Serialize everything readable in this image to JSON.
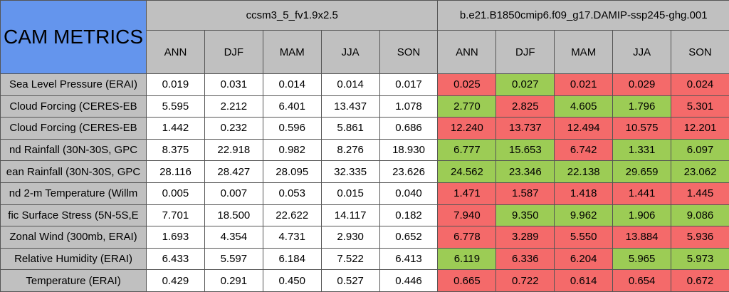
{
  "header": {
    "title": "CAM METRICS",
    "groups": [
      "ccsm3_5_fv1.9x2.5",
      "b.e21.B1850cmip6.f09_g17.DAMIP-ssp245-ghg.001"
    ],
    "seasons": [
      "ANN",
      "DJF",
      "MAM",
      "JJA",
      "SON"
    ]
  },
  "table": {
    "rows": [
      {
        "label": "Sea Level Pressure (ERAI)",
        "values": [
          [
            "0.019",
            "0.031",
            "0.014",
            "0.014",
            "0.017"
          ],
          [
            "0.025",
            "0.027",
            "0.021",
            "0.029",
            "0.024"
          ]
        ],
        "colors": [
          "#f46a6a",
          "#9ccc55",
          "#f46a6a",
          "#f46a6a",
          "#f46a6a"
        ]
      },
      {
        "label": "Cloud Forcing (CERES-EB",
        "values": [
          [
            "5.595",
            "2.212",
            "6.401",
            "13.437",
            "1.078"
          ],
          [
            "2.770",
            "2.825",
            "4.605",
            "1.796",
            "5.301"
          ]
        ],
        "colors": [
          "#9ccc55",
          "#f46a6a",
          "#9ccc55",
          "#9ccc55",
          "#f46a6a"
        ]
      },
      {
        "label": "Cloud Forcing (CERES-EB",
        "values": [
          [
            "1.442",
            "0.232",
            "0.596",
            "5.861",
            "0.686"
          ],
          [
            "12.240",
            "13.737",
            "12.494",
            "10.575",
            "12.201"
          ]
        ],
        "colors": [
          "#f46a6a",
          "#f46a6a",
          "#f46a6a",
          "#f46a6a",
          "#f46a6a"
        ]
      },
      {
        "label": "nd Rainfall (30N-30S, GPC",
        "values": [
          [
            "8.375",
            "22.918",
            "0.982",
            "8.276",
            "18.930"
          ],
          [
            "6.777",
            "15.653",
            "6.742",
            "1.331",
            "6.097"
          ]
        ],
        "colors": [
          "#9ccc55",
          "#9ccc55",
          "#f46a6a",
          "#9ccc55",
          "#9ccc55"
        ]
      },
      {
        "label": "ean Rainfall (30N-30S, GPC",
        "values": [
          [
            "28.116",
            "28.427",
            "28.095",
            "32.335",
            "23.626"
          ],
          [
            "24.562",
            "23.346",
            "22.138",
            "29.659",
            "23.062"
          ]
        ],
        "colors": [
          "#9ccc55",
          "#9ccc55",
          "#9ccc55",
          "#9ccc55",
          "#9ccc55"
        ]
      },
      {
        "label": "nd 2-m Temperature (Willm",
        "values": [
          [
            "0.005",
            "0.007",
            "0.053",
            "0.015",
            "0.040"
          ],
          [
            "1.471",
            "1.587",
            "1.418",
            "1.441",
            "1.445"
          ]
        ],
        "colors": [
          "#f46a6a",
          "#f46a6a",
          "#f46a6a",
          "#f46a6a",
          "#f46a6a"
        ]
      },
      {
        "label": "fic Surface Stress (5N-5S,E",
        "values": [
          [
            "7.701",
            "18.500",
            "22.622",
            "14.117",
            "0.182"
          ],
          [
            "7.940",
            "9.350",
            "9.962",
            "1.906",
            "9.086"
          ]
        ],
        "colors": [
          "#f46a6a",
          "#9ccc55",
          "#9ccc55",
          "#9ccc55",
          "#9ccc55"
        ]
      },
      {
        "label": "Zonal Wind (300mb, ERAI)",
        "values": [
          [
            "1.693",
            "4.354",
            "4.731",
            "2.930",
            "0.652"
          ],
          [
            "6.778",
            "3.289",
            "5.550",
            "13.884",
            "5.936"
          ]
        ],
        "colors": [
          "#f46a6a",
          "#f46a6a",
          "#f46a6a",
          "#f46a6a",
          "#f46a6a"
        ]
      },
      {
        "label": "Relative Humidity (ERAI)",
        "values": [
          [
            "6.433",
            "5.597",
            "6.184",
            "7.522",
            "6.413"
          ],
          [
            "6.119",
            "6.336",
            "6.204",
            "5.965",
            "5.973"
          ]
        ],
        "colors": [
          "#9ccc55",
          "#f46a6a",
          "#f46a6a",
          "#9ccc55",
          "#9ccc55"
        ]
      },
      {
        "label": "Temperature (ERAI)",
        "values": [
          [
            "0.429",
            "0.291",
            "0.450",
            "0.527",
            "0.446"
          ],
          [
            "0.665",
            "0.722",
            "0.614",
            "0.654",
            "0.672"
          ]
        ],
        "colors": [
          "#f46a6a",
          "#f46a6a",
          "#f46a6a",
          "#f46a6a",
          "#f46a6a"
        ]
      }
    ]
  }
}
